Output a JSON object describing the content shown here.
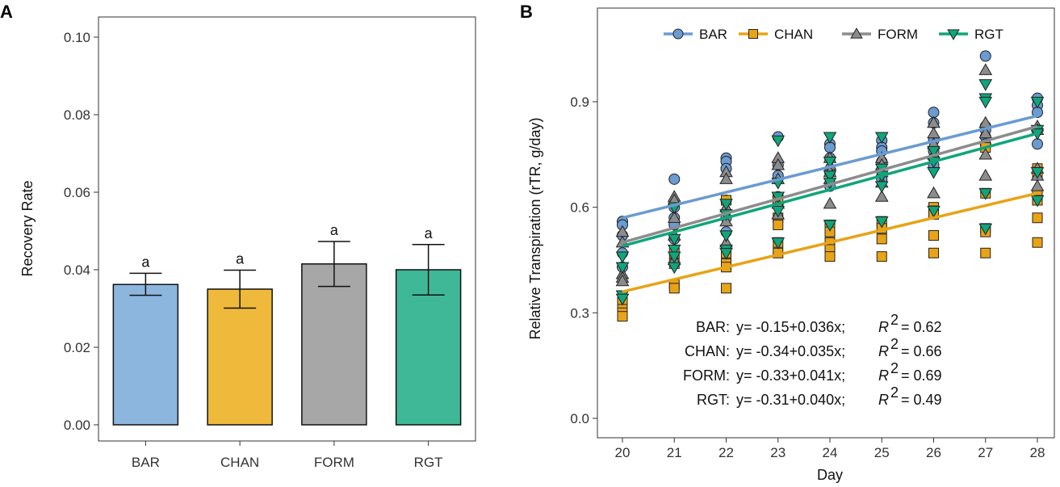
{
  "chart_data": [
    {
      "panel": "A",
      "type": "bar",
      "title": "",
      "xlabel": "",
      "ylabel": "Recovery Rate",
      "ylim": [
        0,
        0.104
      ],
      "yticks": [
        0.0,
        0.02,
        0.04,
        0.06,
        0.08,
        0.1
      ],
      "ytick_labels": [
        "0.00",
        "0.02",
        "0.04",
        "0.06",
        "0.08",
        "0.10"
      ],
      "categories": [
        "BAR",
        "CHAN",
        "FORM",
        "RGT"
      ],
      "values": [
        0.0362,
        0.035,
        0.0415,
        0.04
      ],
      "error_low": [
        0.0334,
        0.0301,
        0.0357,
        0.0335
      ],
      "error_high": [
        0.0391,
        0.0399,
        0.0473,
        0.0465
      ],
      "significance": [
        "a",
        "a",
        "a",
        "a"
      ],
      "colors": [
        "#8db6de",
        "#efb93c",
        "#a7a7a7",
        "#3fb897"
      ],
      "grid": false
    },
    {
      "panel": "B",
      "type": "scatter",
      "title": "",
      "xlabel": "Day",
      "ylabel": "Relative Transpiration (rTR, g/day)",
      "xlim": [
        19.7,
        28.3
      ],
      "ylim": [
        -0.05,
        1.09
      ],
      "xticks": [
        20,
        21,
        22,
        23,
        24,
        25,
        26,
        27,
        28
      ],
      "yticks": [
        0.0,
        0.3,
        0.6,
        0.9
      ],
      "ytick_labels": [
        "0.0",
        "0.3",
        "0.6",
        "0.9"
      ],
      "legend_position": "top",
      "grid": false,
      "series": [
        {
          "name": "BAR",
          "color": "#6a9bd1",
          "marker": "circle",
          "fit_intercept": -0.15,
          "fit_slope": 0.036,
          "fit_line": [
            [
              20,
              0.57
            ],
            [
              28,
              0.86
            ]
          ],
          "points": [
            [
              20,
              0.56
            ],
            [
              20,
              0.55
            ],
            [
              20,
              0.52
            ],
            [
              20,
              0.47
            ],
            [
              20,
              0.43
            ],
            [
              21,
              0.68
            ],
            [
              21,
              0.6
            ],
            [
              21,
              0.57
            ],
            [
              21,
              0.55
            ],
            [
              21,
              0.51
            ],
            [
              22,
              0.74
            ],
            [
              22,
              0.73
            ],
            [
              22,
              0.71
            ],
            [
              22,
              0.62
            ],
            [
              22,
              0.57
            ],
            [
              22,
              0.53
            ],
            [
              23,
              0.8
            ],
            [
              23,
              0.72
            ],
            [
              23,
              0.69
            ],
            [
              23,
              0.63
            ],
            [
              23,
              0.61
            ],
            [
              24,
              0.78
            ],
            [
              24,
              0.77
            ],
            [
              24,
              0.74
            ],
            [
              24,
              0.7
            ],
            [
              24,
              0.66
            ],
            [
              25,
              0.79
            ],
            [
              25,
              0.77
            ],
            [
              25,
              0.76
            ],
            [
              25,
              0.73
            ],
            [
              25,
              0.68
            ],
            [
              26,
              0.87
            ],
            [
              26,
              0.84
            ],
            [
              26,
              0.79
            ],
            [
              26,
              0.76
            ],
            [
              26,
              0.74
            ],
            [
              26,
              0.72
            ],
            [
              27,
              1.03
            ],
            [
              27,
              0.83
            ],
            [
              27,
              0.82
            ],
            [
              27,
              0.8
            ],
            [
              27,
              0.78
            ],
            [
              28,
              0.91
            ],
            [
              28,
              0.89
            ],
            [
              28,
              0.87
            ],
            [
              28,
              0.82
            ],
            [
              28,
              0.78
            ]
          ]
        },
        {
          "name": "CHAN",
          "color": "#e8a317",
          "marker": "square",
          "fit_intercept": -0.34,
          "fit_slope": 0.035,
          "fit_line": [
            [
              20,
              0.36
            ],
            [
              28,
              0.64
            ]
          ],
          "points": [
            [
              20,
              0.33
            ],
            [
              20,
              0.31
            ],
            [
              20,
              0.3
            ],
            [
              20,
              0.29
            ],
            [
              21,
              0.47
            ],
            [
              21,
              0.44
            ],
            [
              21,
              0.38
            ],
            [
              21,
              0.37
            ],
            [
              22,
              0.62
            ],
            [
              22,
              0.47
            ],
            [
              22,
              0.44
            ],
            [
              22,
              0.43
            ],
            [
              22,
              0.37
            ],
            [
              23,
              0.62
            ],
            [
              23,
              0.57
            ],
            [
              23,
              0.55
            ],
            [
              23,
              0.5
            ],
            [
              23,
              0.47
            ],
            [
              24,
              0.55
            ],
            [
              24,
              0.53
            ],
            [
              24,
              0.5
            ],
            [
              24,
              0.48
            ],
            [
              24,
              0.46
            ],
            [
              25,
              0.56
            ],
            [
              25,
              0.54
            ],
            [
              25,
              0.51
            ],
            [
              25,
              0.46
            ],
            [
              26,
              0.6
            ],
            [
              26,
              0.59
            ],
            [
              26,
              0.58
            ],
            [
              26,
              0.52
            ],
            [
              26,
              0.47
            ],
            [
              27,
              0.77
            ],
            [
              27,
              0.64
            ],
            [
              27,
              0.54
            ],
            [
              27,
              0.53
            ],
            [
              27,
              0.47
            ],
            [
              28,
              0.71
            ],
            [
              28,
              0.7
            ],
            [
              28,
              0.64
            ],
            [
              28,
              0.62
            ],
            [
              28,
              0.57
            ],
            [
              28,
              0.5
            ]
          ]
        },
        {
          "name": "FORM",
          "color": "#8c8c8c",
          "marker": "triangle-up",
          "fit_intercept": -0.33,
          "fit_slope": 0.041,
          "fit_line": [
            [
              20,
              0.5
            ],
            [
              28,
              0.83
            ]
          ],
          "points": [
            [
              20,
              0.53
            ],
            [
              20,
              0.5
            ],
            [
              20,
              0.41
            ],
            [
              20,
              0.4
            ],
            [
              20,
              0.39
            ],
            [
              21,
              0.63
            ],
            [
              21,
              0.62
            ],
            [
              21,
              0.57
            ],
            [
              21,
              0.52
            ],
            [
              21,
              0.45
            ],
            [
              22,
              0.7
            ],
            [
              22,
              0.68
            ],
            [
              22,
              0.6
            ],
            [
              22,
              0.56
            ],
            [
              22,
              0.5
            ],
            [
              23,
              0.74
            ],
            [
              23,
              0.72
            ],
            [
              23,
              0.68
            ],
            [
              23,
              0.61
            ],
            [
              23,
              0.58
            ],
            [
              24,
              0.74
            ],
            [
              24,
              0.72
            ],
            [
              24,
              0.7
            ],
            [
              24,
              0.68
            ],
            [
              24,
              0.61
            ],
            [
              25,
              0.74
            ],
            [
              25,
              0.72
            ],
            [
              25,
              0.7
            ],
            [
              25,
              0.67
            ],
            [
              25,
              0.63
            ],
            [
              26,
              0.84
            ],
            [
              26,
              0.81
            ],
            [
              26,
              0.78
            ],
            [
              26,
              0.75
            ],
            [
              26,
              0.64
            ],
            [
              27,
              0.99
            ],
            [
              27,
              0.84
            ],
            [
              27,
              0.81
            ],
            [
              27,
              0.75
            ],
            [
              27,
              0.69
            ],
            [
              28,
              0.83
            ],
            [
              28,
              0.82
            ],
            [
              28,
              0.71
            ],
            [
              28,
              0.69
            ],
            [
              28,
              0.66
            ]
          ]
        },
        {
          "name": "RGT",
          "color": "#10a57a",
          "marker": "triangle-down",
          "fit_intercept": -0.31,
          "fit_slope": 0.04,
          "fit_line": [
            [
              20,
              0.49
            ],
            [
              28,
              0.81
            ]
          ],
          "points": [
            [
              20,
              0.46
            ],
            [
              20,
              0.43
            ],
            [
              20,
              0.35
            ],
            [
              20,
              0.34
            ],
            [
              21,
              0.6
            ],
            [
              21,
              0.51
            ],
            [
              21,
              0.48
            ],
            [
              21,
              0.46
            ],
            [
              21,
              0.43
            ],
            [
              22,
              0.61
            ],
            [
              22,
              0.58
            ],
            [
              22,
              0.52
            ],
            [
              22,
              0.48
            ],
            [
              22,
              0.47
            ],
            [
              23,
              0.79
            ],
            [
              23,
              0.67
            ],
            [
              23,
              0.63
            ],
            [
              23,
              0.59
            ],
            [
              23,
              0.5
            ],
            [
              24,
              0.8
            ],
            [
              24,
              0.73
            ],
            [
              24,
              0.69
            ],
            [
              24,
              0.67
            ],
            [
              24,
              0.55
            ],
            [
              25,
              0.8
            ],
            [
              25,
              0.71
            ],
            [
              25,
              0.69
            ],
            [
              25,
              0.66
            ],
            [
              25,
              0.56
            ],
            [
              26,
              0.76
            ],
            [
              26,
              0.73
            ],
            [
              26,
              0.7
            ],
            [
              26,
              0.59
            ],
            [
              27,
              0.95
            ],
            [
              27,
              0.91
            ],
            [
              27,
              0.9
            ],
            [
              27,
              0.64
            ],
            [
              27,
              0.54
            ],
            [
              28,
              0.9
            ],
            [
              28,
              0.82
            ],
            [
              28,
              0.81
            ],
            [
              28,
              0.7
            ],
            [
              28,
              0.62
            ]
          ]
        }
      ],
      "annotations": [
        {
          "group": "BAR:",
          "equation": "y= -0.15+0.036x;",
          "r2_label": "R",
          "r2_exp": "2",
          "r2_value": "= 0.62"
        },
        {
          "group": "CHAN:",
          "equation": "y= -0.34+0.035x;",
          "r2_label": "R",
          "r2_exp": "2",
          "r2_value": "= 0.66"
        },
        {
          "group": "FORM:",
          "equation": "y= -0.33+0.041x;",
          "r2_label": "R",
          "r2_exp": "2",
          "r2_value": "= 0.69"
        },
        {
          "group": "RGT:",
          "equation": "y= -0.31+0.040x;",
          "r2_label": "R",
          "r2_exp": "2",
          "r2_value": "= 0.49"
        }
      ]
    }
  ]
}
